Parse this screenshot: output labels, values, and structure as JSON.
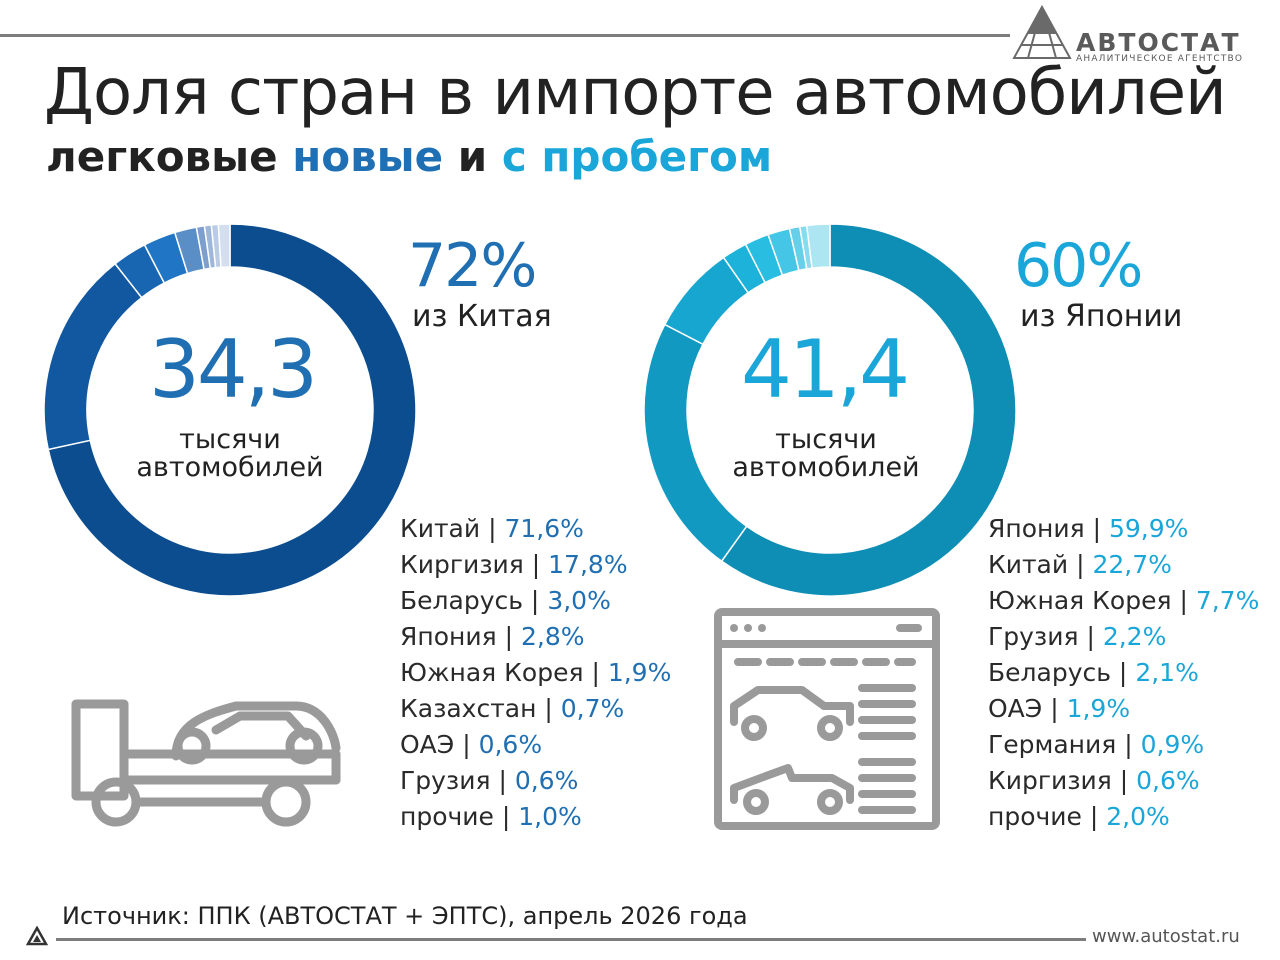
{
  "header": {
    "title": "Доля стран в импорте автомобилей",
    "subtitle_prefix": "легковые",
    "subtitle_new": "новые",
    "subtitle_and": "и",
    "subtitle_used": "с пробегом"
  },
  "logo": {
    "name": "АВТОСТАТ",
    "tagline": "АНАЛИТИЧЕСКОЕ АГЕНТСТВО"
  },
  "new_cars": {
    "total": "34,3",
    "unit_line1": "тысячи",
    "unit_line2": "автомобилей",
    "headline_pct": "72%",
    "headline_caption": "из Китая",
    "accent": "#1f6fb2"
  },
  "used_cars": {
    "total": "41,4",
    "unit_line1": "тысячи",
    "unit_line2": "автомобилей",
    "headline_pct": "60%",
    "headline_caption": "из Японии",
    "accent": "#1aa6d8"
  },
  "chart_data": [
    {
      "type": "pie",
      "donut": true,
      "categories": [
        "Китай",
        "Киргизия",
        "Беларусь",
        "Япония",
        "Южная Корея",
        "Казахстан",
        "ОАЭ",
        "Грузия",
        "прочие"
      ],
      "values": [
        71.6,
        17.8,
        3.0,
        2.8,
        1.9,
        0.7,
        0.6,
        0.6,
        1.0
      ],
      "labels": [
        "71,6%",
        "17,8%",
        "3,0%",
        "2,8%",
        "1,9%",
        "0,7%",
        "0,6%",
        "0,6%",
        "1,0%"
      ],
      "colors": [
        "#0b4d8f",
        "#1158a0",
        "#1866b2",
        "#2076c4",
        "#5a8ec6",
        "#7d9fce",
        "#9eb6da",
        "#b9cbe5",
        "#d3dff0"
      ],
      "center_value": "34,3"
    },
    {
      "type": "pie",
      "donut": true,
      "categories": [
        "Япония",
        "Китай",
        "Южная Корея",
        "Грузия",
        "Беларусь",
        "ОАЭ",
        "Германия",
        "Киргизия",
        "прочие"
      ],
      "values": [
        59.9,
        22.7,
        7.7,
        2.2,
        2.1,
        1.9,
        0.9,
        0.6,
        2.0
      ],
      "labels": [
        "59,9%",
        "22,7%",
        "7,7%",
        "2,2%",
        "2,1%",
        "1,9%",
        "0,9%",
        "0,6%",
        "2,0%"
      ],
      "colors": [
        "#0e8db5",
        "#1299c2",
        "#16a6cf",
        "#1cb2da",
        "#29bde2",
        "#45c6e6",
        "#66d0ea",
        "#88daee",
        "#aee5f3"
      ],
      "center_value": "41,4"
    }
  ],
  "footer": {
    "source": "Источник: ППК (АВТОСТАТ + ЭПТС), апрель 2026 года",
    "url": "www.autostat.ru"
  },
  "icons": {
    "truck": "tow-truck-icon",
    "listing": "car-listing-icon",
    "logo": "autostat-logo-icon"
  }
}
